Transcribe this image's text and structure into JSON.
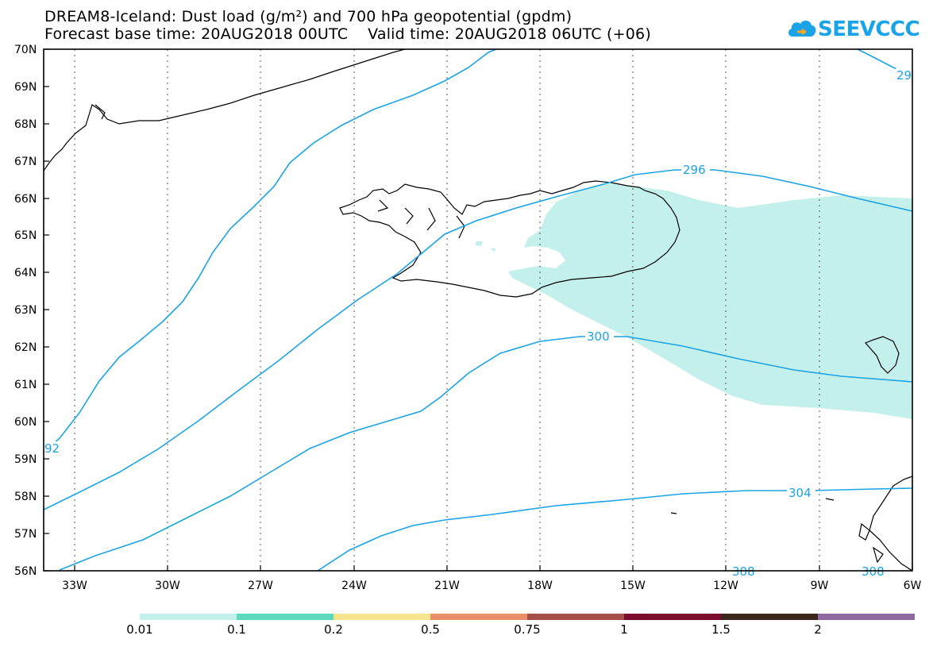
{
  "title": {
    "line1": "DREAM8-Iceland: Dust load (g/m²) and 700 hPa geopotential (gpdm)",
    "line2": "Forecast base time: 20AUG2018 00UTC    Valid time: 20AUG2018 06UTC (+06)"
  },
  "logo": {
    "text": "SEEVCCC",
    "icon": "cloud-icon"
  },
  "map": {
    "lat_labels": [
      "70N",
      "69N",
      "68N",
      "67N",
      "66N",
      "65N",
      "64N",
      "63N",
      "62N",
      "61N",
      "60N",
      "59N",
      "58N",
      "57N",
      "56N"
    ],
    "lon_labels": [
      "33W",
      "30W",
      "27W",
      "24W",
      "21W",
      "18W",
      "15W",
      "12W",
      "9W",
      "6W"
    ],
    "contour_labels": [
      "296",
      "300",
      "304",
      "308",
      "308",
      "92",
      "29"
    ]
  },
  "colorbar": {
    "colors": [
      "#c4f0ec",
      "#5dd9bd",
      "#f6e58d",
      "#e9906a",
      "#a54e48",
      "#7b0c2e",
      "#3b271b",
      "#8e6aa0"
    ],
    "labels": [
      "0.01",
      "0.1",
      "0.2",
      "0.5",
      "0.75",
      "1",
      "1.5",
      "2"
    ]
  },
  "colors": {
    "contour": "#1aa3e8",
    "dust_fill": "#c4f0ec"
  }
}
